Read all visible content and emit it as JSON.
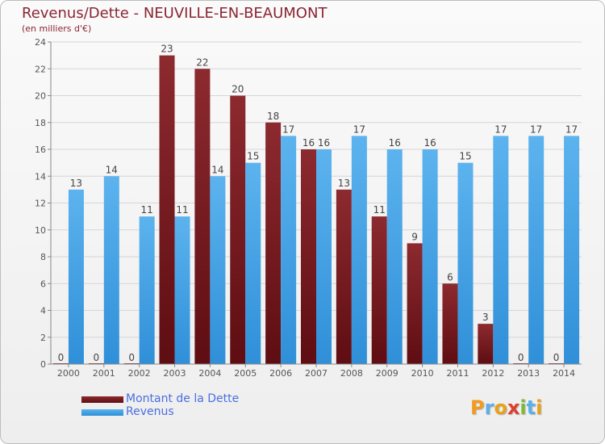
{
  "title": "Revenus/Dette - NEUVILLE-EN-BEAUMONT",
  "subtitle": "(en milliers d'€)",
  "legend": [
    {
      "label": "Montant de la Dette",
      "color": "#7a1a20"
    },
    {
      "label": "Revenus",
      "color": "#3b9ee4"
    }
  ],
  "logo": {
    "text": "Proxiti",
    "letter_colors": [
      "#f29b1e",
      "#5bb0e8",
      "#e8a21a",
      "#dd3f2b",
      "#7dbb35",
      "#5bb0e8",
      "#e8a21a"
    ]
  },
  "chart_data": {
    "type": "bar",
    "categories": [
      "2000",
      "2001",
      "2002",
      "2003",
      "2004",
      "2005",
      "2006",
      "2007",
      "2008",
      "2009",
      "2010",
      "2011",
      "2012",
      "2013",
      "2014"
    ],
    "series": [
      {
        "name": "Montant de la Dette",
        "color": "#7a1a20",
        "values": [
          0,
          0,
          0,
          23,
          22,
          20,
          18,
          16,
          13,
          11,
          9,
          6,
          3,
          0,
          0
        ]
      },
      {
        "name": "Revenus",
        "color": "#3b9ee4",
        "values": [
          13,
          14,
          11,
          11,
          14,
          15,
          17,
          16,
          17,
          16,
          16,
          15,
          17,
          17,
          17
        ]
      }
    ],
    "ylim": [
      0,
      24
    ],
    "yticks": [
      "0",
      "2",
      "4",
      "6",
      "8",
      "10",
      "12",
      "14",
      "16",
      "18",
      "20",
      "22",
      "24"
    ],
    "grid": true
  }
}
